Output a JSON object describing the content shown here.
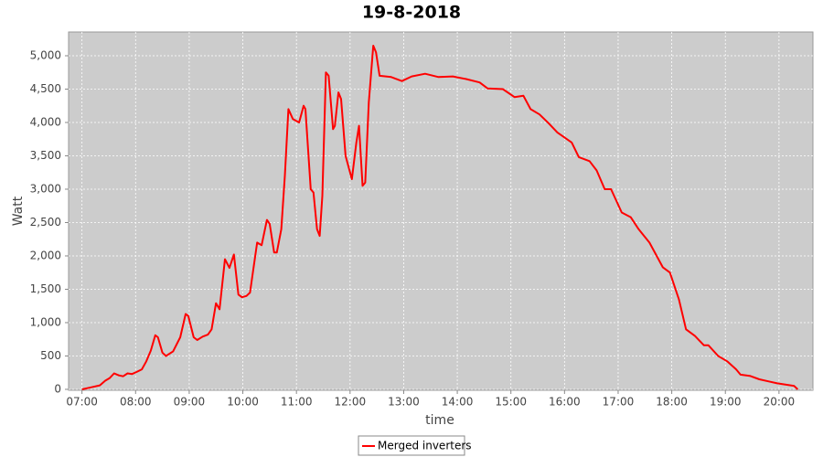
{
  "chart_data": {
    "type": "line",
    "title": "19-8-2018",
    "x_label": "time",
    "y_label": "Watt",
    "x": [
      "07:00",
      "07:10",
      "07:20",
      "07:26",
      "07:31",
      "07:36",
      "07:41",
      "07:46",
      "07:51",
      "07:56",
      "08:01",
      "08:07",
      "08:12",
      "08:17",
      "08:22",
      "08:25",
      "08:30",
      "08:34",
      "08:42",
      "08:50",
      "08:56",
      "08:59",
      "09:05",
      "09:09",
      "09:15",
      "09:21",
      "09:25",
      "09:30",
      "09:34",
      "09:40",
      "09:45",
      "09:50",
      "09:55",
      "09:59",
      "10:04",
      "10:08",
      "10:16",
      "10:21",
      "10:27",
      "10:30",
      "10:35",
      "10:38",
      "10:43",
      "10:47",
      "10:51",
      "10:56",
      "11:03",
      "11:08",
      "11:10",
      "11:16",
      "11:19",
      "11:23",
      "11:26",
      "11:29",
      "11:33",
      "11:36",
      "11:41",
      "11:43",
      "11:47",
      "11:50",
      "11:55",
      "12:02",
      "12:07",
      "12:10",
      "12:14",
      "12:17",
      "12:21",
      "12:26",
      "12:29",
      "12:33",
      "12:46",
      "12:58",
      "13:09",
      "13:24",
      "13:39",
      "13:55",
      "14:10",
      "14:25",
      "14:34",
      "14:51",
      "15:04",
      "15:14",
      "15:22",
      "15:32",
      "15:42",
      "15:52",
      "16:08",
      "16:16",
      "16:28",
      "16:36",
      "16:45",
      "16:52",
      "17:04",
      "17:14",
      "17:23",
      "17:35",
      "17:50",
      "17:58",
      "18:08",
      "18:16",
      "18:26",
      "18:36",
      "18:41",
      "18:52",
      "19:02",
      "19:12",
      "19:17",
      "19:28",
      "19:38",
      "19:48",
      "19:58",
      "20:08",
      "20:17",
      "20:21"
    ],
    "series": [
      {
        "name": "Merged inverters",
        "color": "#ff0000",
        "values": [
          0,
          30,
          60,
          130,
          170,
          240,
          210,
          195,
          240,
          230,
          260,
          300,
          420,
          580,
          810,
          780,
          550,
          500,
          570,
          780,
          1130,
          1100,
          780,
          740,
          790,
          820,
          900,
          1290,
          1200,
          1950,
          1820,
          2020,
          1420,
          1380,
          1400,
          1450,
          2200,
          2160,
          2540,
          2480,
          2050,
          2050,
          2400,
          3200,
          4200,
          4050,
          4000,
          4250,
          4200,
          3000,
          2950,
          2400,
          2300,
          2900,
          4750,
          4700,
          3900,
          3950,
          4450,
          4350,
          3500,
          3150,
          3700,
          3950,
          3050,
          3100,
          4300,
          5150,
          5050,
          4700,
          4680,
          4620,
          4690,
          4730,
          4680,
          4690,
          4650,
          4600,
          4510,
          4500,
          4380,
          4400,
          4200,
          4120,
          3990,
          3850,
          3700,
          3480,
          3420,
          3280,
          3000,
          3000,
          2650,
          2580,
          2400,
          2200,
          1830,
          1750,
          1350,
          900,
          800,
          660,
          660,
          500,
          420,
          300,
          220,
          200,
          150,
          120,
          90,
          70,
          50,
          0
        ]
      }
    ],
    "xlim": [
      "06:45",
      "20:38"
    ],
    "xticks": [
      "07:00",
      "08:00",
      "09:00",
      "10:00",
      "11:00",
      "12:00",
      "13:00",
      "14:00",
      "15:00",
      "16:00",
      "17:00",
      "18:00",
      "19:00",
      "20:00"
    ],
    "ylim": [
      -14,
      5356
    ],
    "yticks": [
      0,
      500,
      {
        "value": 1000,
        "label": "1,000"
      },
      {
        "value": 1500,
        "label": "1,500"
      },
      {
        "value": 2000,
        "label": "2,000"
      },
      {
        "value": 2500,
        "label": "2,500"
      },
      {
        "value": 3000,
        "label": "3,000"
      },
      {
        "value": 3500,
        "label": "3,500"
      },
      {
        "value": 4000,
        "label": "4,000"
      },
      {
        "value": 4500,
        "label": "4,500"
      },
      {
        "value": 5000,
        "label": "5,000"
      }
    ],
    "grid": true,
    "legend": "bottom"
  }
}
